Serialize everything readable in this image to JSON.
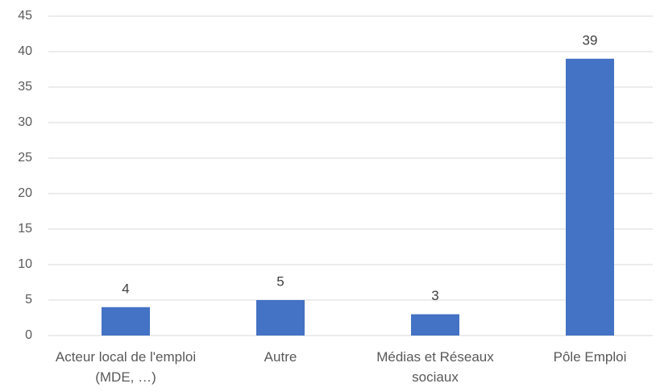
{
  "chart_data": {
    "type": "bar",
    "categories": [
      "Acteur local de l'emploi (MDE, …)",
      "Autre",
      "Médias et Réseaux sociaux",
      "Pôle Emploi"
    ],
    "values": [
      4,
      5,
      3,
      39
    ],
    "color": "#4472c4",
    "ylim": [
      0,
      45
    ],
    "yticks": [
      0,
      5,
      10,
      15,
      20,
      25,
      30,
      35,
      40,
      45
    ],
    "grid": true
  }
}
